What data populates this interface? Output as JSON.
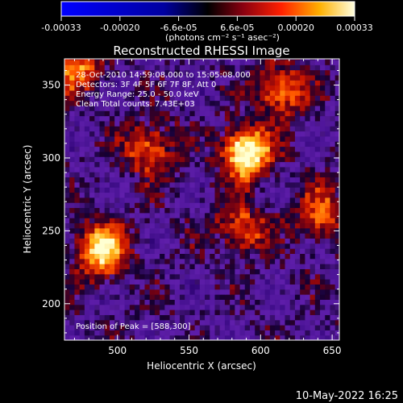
{
  "colorbar": {
    "tick_labels": [
      "-0.00033",
      "-0.00020",
      "-6.6e-05",
      "6.6e-05",
      "0.00020",
      "0.00033"
    ],
    "unit_label": "(photons cm⁻² s⁻¹ asec⁻²)"
  },
  "chart_data": {
    "type": "heatmap",
    "title": "Reconstructed RHESSI Image",
    "xlabel": "Heliocentric X (arcsec)",
    "ylabel": "Heliocentric Y (arcsec)",
    "xlim": [
      463,
      655
    ],
    "ylim": [
      175,
      368
    ],
    "x_ticks": [
      "500",
      "550",
      "600",
      "650"
    ],
    "y_ticks": [
      "200",
      "250",
      "300",
      "350"
    ],
    "colorbar_range": [
      -0.00033,
      0.00033
    ],
    "annotations": [
      "28-Oct-2010 14:59:08.000 to 15:05:08.000",
      "Detectors: 3F 4F 5F 6F 7F 8F, Att 0",
      "Energy Range: 25.0 - 50.0 keV",
      "Clean    Total counts: 7.43E+03"
    ],
    "peak_label": "Position of Peak = [588,300]",
    "peak": [
      588,
      300
    ],
    "bright_sources": [
      {
        "x": 588,
        "y": 302,
        "level": 1.0
      },
      {
        "x": 487,
        "y": 235,
        "level": 0.85
      },
      {
        "x": 612,
        "y": 345,
        "level": 0.6
      },
      {
        "x": 520,
        "y": 305,
        "level": 0.55
      },
      {
        "x": 585,
        "y": 250,
        "level": 0.5
      },
      {
        "x": 640,
        "y": 260,
        "level": 0.5
      },
      {
        "x": 470,
        "y": 360,
        "level": 0.5
      }
    ]
  },
  "footer": {
    "timestamp": "10-May-2022 16:25"
  }
}
